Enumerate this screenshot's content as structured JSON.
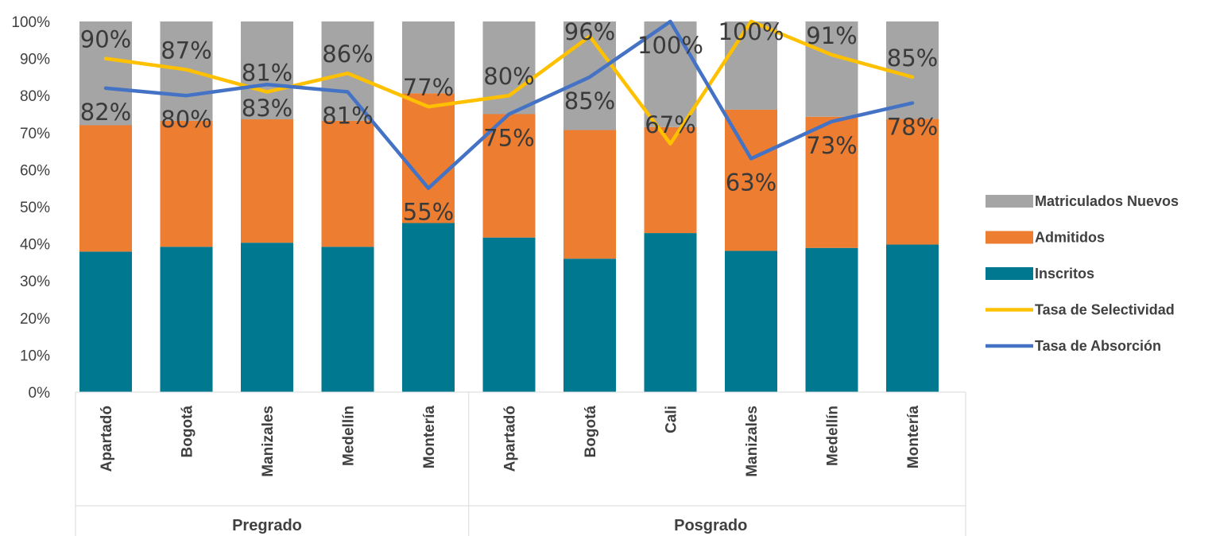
{
  "chart_data": {
    "type": "bar",
    "stacked": true,
    "percent_stacked": true,
    "title": "",
    "xlabel": "",
    "ylabel": "",
    "ylim": [
      0,
      100
    ],
    "yticks": [
      "0%",
      "10%",
      "20%",
      "30%",
      "40%",
      "50%",
      "60%",
      "70%",
      "80%",
      "90%",
      "100%"
    ],
    "grid": false,
    "legend_position": "right",
    "groups": [
      {
        "name": "Pregrado",
        "categories": [
          "Apartadó",
          "Bogotá",
          "Manizales",
          "Medellín",
          "Montería"
        ]
      },
      {
        "name": "Posgrado",
        "categories": [
          "Apartadó",
          "Bogotá",
          "Cali",
          "Manizales",
          "Medellín",
          "Montería"
        ]
      }
    ],
    "categories": [
      "Apartadó",
      "Bogotá",
      "Manizales",
      "Medellín",
      "Montería",
      "Apartadó",
      "Bogotá",
      "Cali",
      "Manizales",
      "Medellín",
      "Montería"
    ],
    "bar_series": [
      {
        "name": "Inscritos",
        "color": "#00788F",
        "values": [
          37.9,
          39.2,
          40.3,
          39.2,
          45.6,
          41.7,
          36.0,
          42.9,
          38.1,
          38.9,
          39.8
        ]
      },
      {
        "name": "Admitidos",
        "color": "#ED7D31",
        "values": [
          34.1,
          34.0,
          33.3,
          34.0,
          35.0,
          33.3,
          34.7,
          28.6,
          38.1,
          35.4,
          33.9
        ]
      },
      {
        "name": "Matriculados Nuevos",
        "color": "#A5A5A5",
        "values": [
          28.0,
          26.8,
          26.4,
          26.8,
          19.4,
          25.0,
          29.3,
          28.5,
          23.8,
          25.7,
          26.3
        ]
      }
    ],
    "line_series": [
      {
        "name": "Tasa de Selectividad",
        "color": "#FFC000",
        "values": [
          90,
          87,
          81,
          86,
          77,
          80,
          96,
          67,
          100,
          91,
          85
        ],
        "labels": [
          "90%",
          "87%",
          "81%",
          "86%",
          "77%",
          "80%",
          "96%",
          "67%",
          "100%",
          "91%",
          "85%"
        ]
      },
      {
        "name": "Tasa de Absorción",
        "color": "#4472C4",
        "values": [
          82,
          80,
          83,
          81,
          55,
          75,
          85,
          100,
          63,
          73,
          78
        ],
        "labels": [
          "82%",
          "80%",
          "83%",
          "81%",
          "55%",
          "75%",
          "85%",
          "100%",
          "63%",
          "73%",
          "78%"
        ]
      }
    ],
    "legend": [
      "Matriculados Nuevos",
      "Admitidos",
      "Inscritos",
      "Tasa de Selectividad",
      "Tasa de Absorción"
    ]
  }
}
